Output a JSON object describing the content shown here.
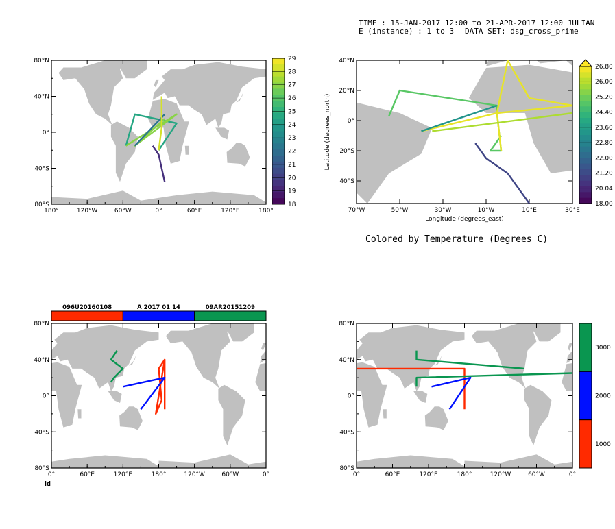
{
  "header": {
    "line1": "TIME : 15-JAN-2017 12:00 to 21-APR-2017 12:00 JULIAN",
    "line2_left": "E (instance) : 1 to 3",
    "line2_right": "DATA SET: dsg_cross_prime"
  },
  "caption": "Colored by Temperature (Degrees C)",
  "colors": {
    "land": "#c0c0c0",
    "red": "#ff2a00",
    "blue": "#0010ff",
    "green": "#0a9650"
  },
  "chart_data": [
    {
      "id": "panel-1",
      "type": "line",
      "map": "world-global",
      "x_ticks": [
        "180°",
        "120°W",
        "60°W",
        "0°",
        "60°E",
        "120°E",
        "180°"
      ],
      "y_ticks": [
        "80°S",
        "40°S",
        "0°",
        "40°N",
        "80°N"
      ],
      "xlim": [
        -180,
        180
      ],
      "ylim": [
        -80,
        80
      ],
      "colorbar": {
        "labels": [
          "29",
          "28",
          "27",
          "26",
          "25",
          "24",
          "23",
          "22",
          "21",
          "20",
          "19",
          "18"
        ],
        "range": [
          18,
          29
        ]
      },
      "series": [
        {
          "points": [
            [
              -55,
              -15
            ],
            [
              -40,
              20
            ],
            [
              30,
              10
            ],
            [
              0,
              -20
            ]
          ],
          "value": 24.5
        },
        {
          "points": [
            [
              -55,
              -15
            ],
            [
              30,
              20
            ],
            [
              -40,
              -15
            ],
            [
              10,
              15
            ]
          ],
          "value": 27
        },
        {
          "points": [
            [
              -40,
              -15
            ],
            [
              10,
              20
            ]
          ],
          "value": 22.2
        },
        {
          "points": [
            [
              0,
              -20
            ],
            [
              5,
              5
            ],
            [
              5,
              40
            ]
          ],
          "value": 28.3
        },
        {
          "points": [
            [
              -10,
              -15
            ],
            [
              0,
              -25
            ],
            [
              5,
              -40
            ],
            [
              10,
              -55
            ]
          ],
          "value": 19.5
        }
      ]
    },
    {
      "id": "panel-2",
      "type": "line",
      "map": "atlantic",
      "x_ticks": [
        "70°W",
        "50°W",
        "30°W",
        "10°W",
        "10°E",
        "30°E"
      ],
      "y_ticks": [
        "40°S",
        "20°S",
        "0°",
        "20°N",
        "40°N"
      ],
      "xlabel": "Longitude (degrees_east)",
      "ylabel": "Latitude (degrees_north)",
      "xlim": [
        -70,
        30
      ],
      "ylim": [
        -55,
        40
      ],
      "colorbar": {
        "labels": [
          "26.80",
          "26.00",
          "25.20",
          "24.40",
          "23.60",
          "22.80",
          "22.00",
          "21.20",
          "20.04",
          "18.00"
        ],
        "range": [
          18,
          26.8
        ]
      },
      "series": [
        {
          "points": [
            [
              -55,
              3
            ],
            [
              -50,
              20
            ],
            [
              -5,
              10
            ],
            [
              -5,
              5
            ],
            [
              -3,
              -20
            ],
            [
              -8,
              -20
            ],
            [
              -3,
              -10
            ]
          ],
          "value": 24.5
        },
        {
          "points": [
            [
              -40,
              -7
            ],
            [
              -5,
              5
            ],
            [
              0,
              40
            ],
            [
              10,
              15
            ],
            [
              30,
              10
            ],
            [
              -5,
              5
            ],
            [
              -3,
              -20
            ]
          ],
          "value": 26.5
        },
        {
          "points": [
            [
              -35,
              -7
            ],
            [
              30,
              5
            ]
          ],
          "value": 25.7
        },
        {
          "points": [
            [
              -40,
              -7
            ],
            [
              -5,
              10
            ]
          ],
          "value": 22.5
        },
        {
          "points": [
            [
              -15,
              -15
            ],
            [
              -10,
              -25
            ],
            [
              0,
              -35
            ],
            [
              5,
              -45
            ],
            [
              10,
              -55
            ]
          ],
          "value": 19.8
        }
      ]
    },
    {
      "id": "panel-3",
      "type": "line",
      "map": "world-pacific",
      "x_ticks": [
        "0°",
        "60°E",
        "120°E",
        "180°",
        "120°W",
        "60°W",
        "0°"
      ],
      "y_ticks": [
        "80°S",
        "40°S",
        "0°",
        "40°N",
        "80°N"
      ],
      "xlabel": "id",
      "xlim": [
        0,
        360
      ],
      "ylim": [
        -80,
        80
      ],
      "legend_boxes": [
        "096U20160108",
        "A 2017 01 14",
        "09AR20151209"
      ],
      "series": [
        {
          "label": "096U20160108",
          "color": "red",
          "points": [
            [
              190,
              40
            ],
            [
              180,
              30
            ],
            [
              185,
              -5
            ],
            [
              175,
              -20
            ],
            [
              190,
              40
            ],
            [
              190,
              -15
            ]
          ]
        },
        {
          "label": "A 2017 01 14",
          "color": "blue",
          "points": [
            [
              120,
              10
            ],
            [
              190,
              20
            ],
            [
              150,
              -15
            ]
          ]
        },
        {
          "label": "09AR20151209",
          "color": "green",
          "points": [
            [
              110,
              50
            ],
            [
              100,
              40
            ],
            [
              120,
              30
            ],
            [
              105,
              20
            ],
            [
              100,
              15
            ]
          ]
        }
      ]
    },
    {
      "id": "panel-4",
      "type": "line",
      "map": "world-pacific",
      "x_ticks": [
        "0°",
        "60°E",
        "120°E",
        "180°",
        "120°W",
        "60°W",
        "0°"
      ],
      "y_ticks": [
        "80°S",
        "40°S",
        "0°",
        "40°N",
        "80°N"
      ],
      "xlim": [
        0,
        360
      ],
      "ylim": [
        -80,
        80
      ],
      "colorbar": {
        "labels": [
          "3000",
          "2000",
          "1000"
        ],
        "range": [
          500,
          3500
        ]
      },
      "series": [
        {
          "color": "red",
          "points": [
            [
              0,
              30
            ],
            [
              180,
              30
            ],
            [
              180,
              -15
            ]
          ]
        },
        {
          "color": "blue",
          "points": [
            [
              125,
              10
            ],
            [
              190,
              20
            ],
            [
              155,
              -15
            ]
          ]
        },
        {
          "color": "green",
          "points": [
            [
              100,
              50
            ],
            [
              100,
              40
            ],
            [
              280,
              30
            ]
          ]
        },
        {
          "color": "green",
          "points": [
            [
              100,
              10
            ],
            [
              100,
              20
            ],
            [
              360,
              25
            ]
          ]
        }
      ]
    }
  ]
}
